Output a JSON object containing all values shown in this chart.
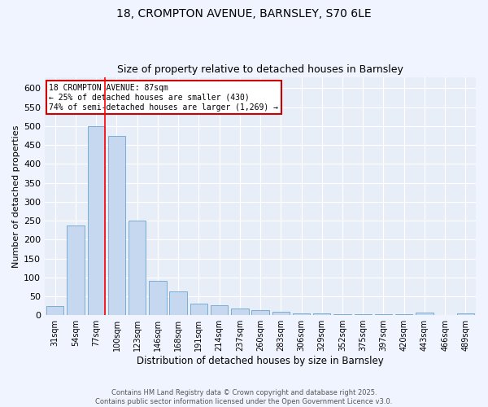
{
  "title1": "18, CROMPTON AVENUE, BARNSLEY, S70 6LE",
  "title2": "Size of property relative to detached houses in Barnsley",
  "xlabel": "Distribution of detached houses by size in Barnsley",
  "ylabel": "Number of detached properties",
  "categories": [
    "31sqm",
    "54sqm",
    "77sqm",
    "100sqm",
    "123sqm",
    "146sqm",
    "168sqm",
    "191sqm",
    "214sqm",
    "237sqm",
    "260sqm",
    "283sqm",
    "306sqm",
    "329sqm",
    "352sqm",
    "375sqm",
    "397sqm",
    "420sqm",
    "443sqm",
    "466sqm",
    "489sqm"
  ],
  "values": [
    25,
    238,
    500,
    473,
    250,
    90,
    63,
    30,
    27,
    18,
    13,
    10,
    5,
    4,
    3,
    3,
    2,
    2,
    6,
    1,
    5
  ],
  "bar_color": "#c5d8f0",
  "bar_edge_color": "#7aadd4",
  "redline_x": 2.43,
  "annotation_title": "18 CROMPTON AVENUE: 87sqm",
  "annotation_line1": "← 25% of detached houses are smaller (430)",
  "annotation_line2": "74% of semi-detached houses are larger (1,269) →",
  "annotation_box_facecolor": "#ffffff",
  "annotation_box_edgecolor": "#cc0000",
  "footer1": "Contains HM Land Registry data © Crown copyright and database right 2025.",
  "footer2": "Contains public sector information licensed under the Open Government Licence v3.0.",
  "ylim": [
    0,
    630
  ],
  "yticks": [
    0,
    50,
    100,
    150,
    200,
    250,
    300,
    350,
    400,
    450,
    500,
    550,
    600
  ],
  "fig_facecolor": "#f0f4ff",
  "plot_bg_color": "#e8eef8"
}
